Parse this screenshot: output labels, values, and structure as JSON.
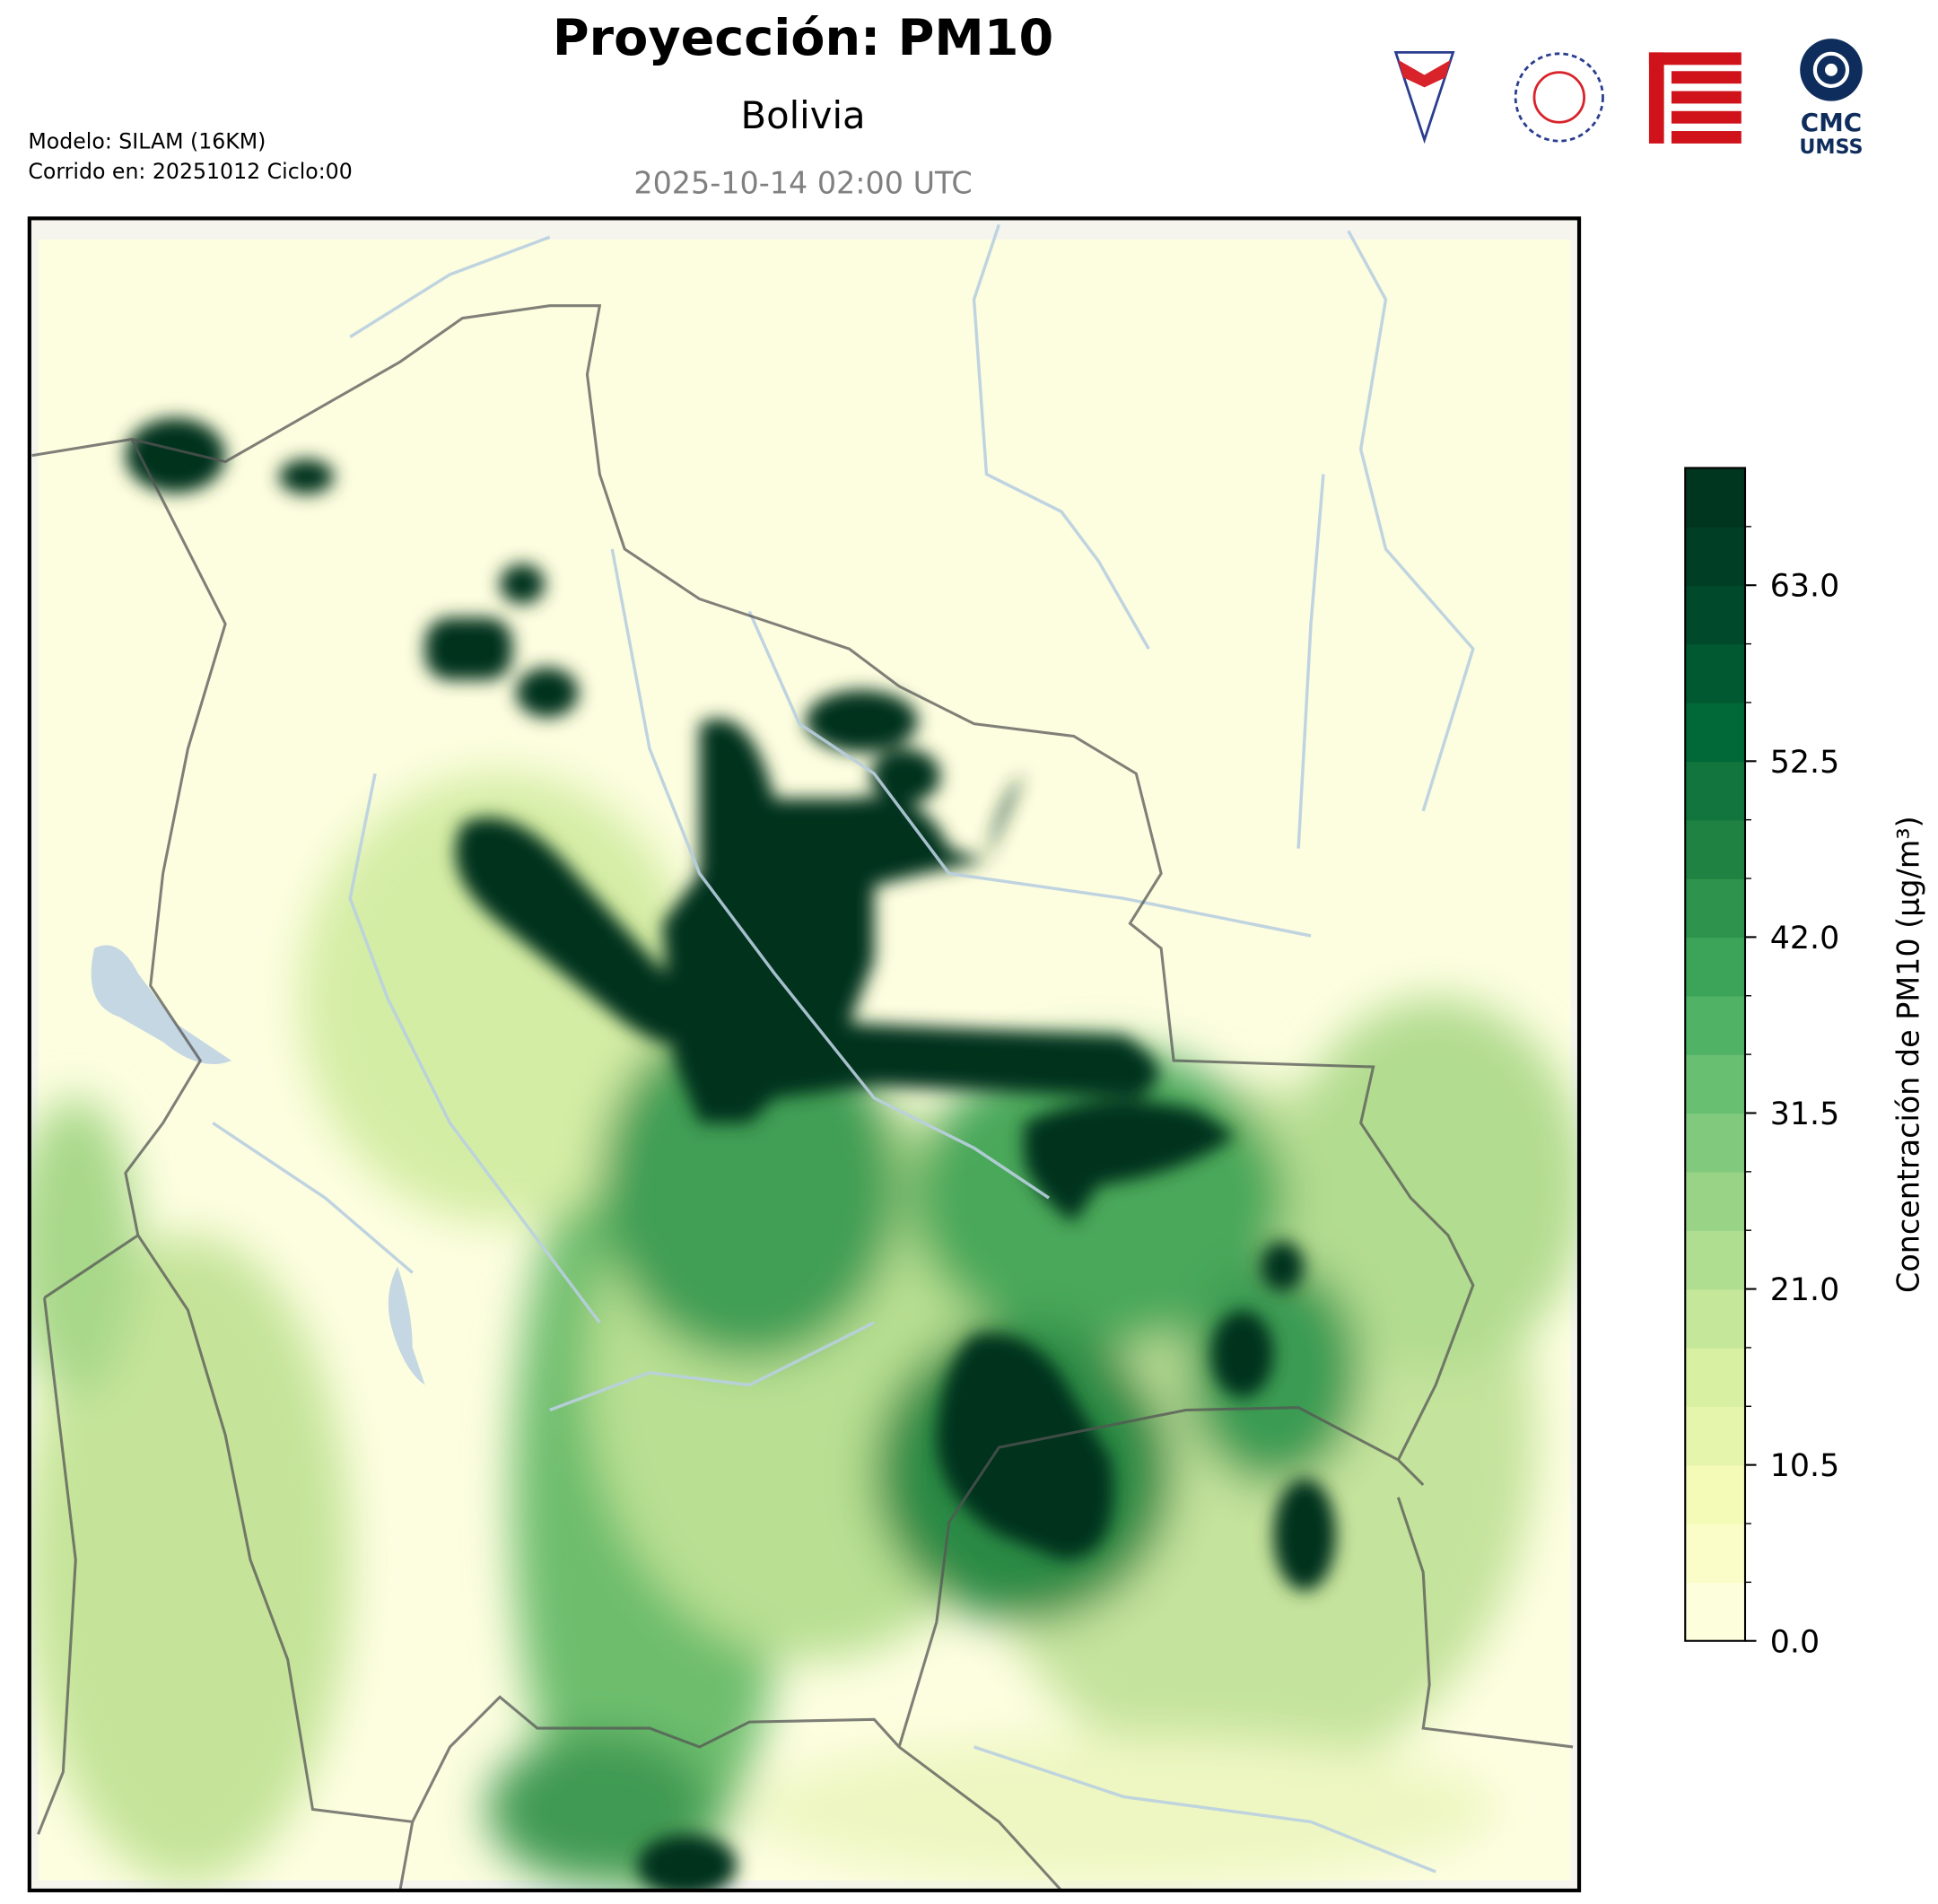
{
  "chart_data": {
    "type": "contour-map",
    "title": "Proyección: PM10",
    "subtitle": "Bolivia",
    "date": "2025-10-14 02:00 UTC",
    "model_lines": [
      "Modelo: SILAM (16KM)",
      "Corrido en: 20251012 Ciclo:00"
    ],
    "logo_texts": [
      "CMC",
      "UMSS"
    ],
    "colorbar_label": "Concentración de PM10 (µg/m³)",
    "clim": [
      0,
      70
    ],
    "level_step": 3.5,
    "colormap": [
      "#ffffe5",
      "#f7fcb9",
      "#d9f0a3",
      "#addd8e",
      "#78c679",
      "#41ab5d",
      "#238443",
      "#006837",
      "#004529",
      "#00301c"
    ],
    "cticks": [
      {
        "value": 0,
        "label": "0.0"
      },
      {
        "value": 10.5,
        "label": "10.5"
      },
      {
        "value": 21,
        "label": "21.0"
      },
      {
        "value": 31.5,
        "label": "31.5"
      },
      {
        "value": 42,
        "label": "42.0"
      },
      {
        "value": 52.5,
        "label": "52.5"
      },
      {
        "value": 63,
        "label": "63.0"
      }
    ]
  }
}
